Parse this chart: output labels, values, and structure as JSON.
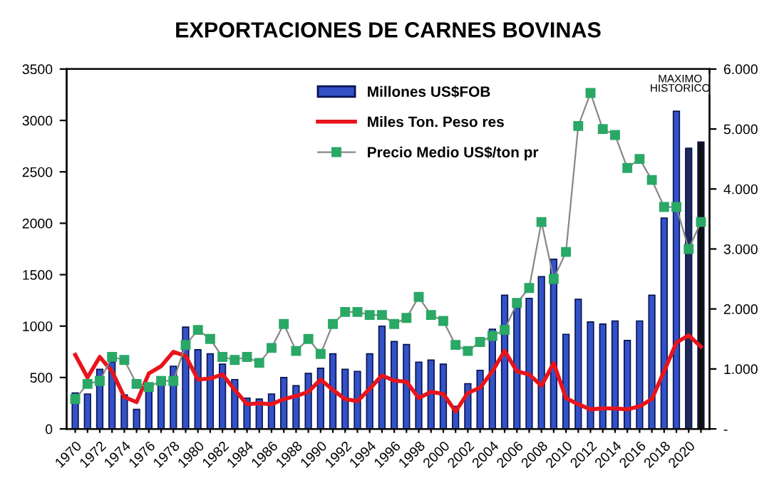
{
  "chart_data": {
    "type": "bar",
    "title": "EXPORTACIONES DE CARNES BOVINAS",
    "categories": [
      "1970",
      null,
      "1972",
      null,
      "1974",
      null,
      "1976",
      null,
      "1978",
      null,
      "1980",
      null,
      "1982",
      null,
      "1984",
      null,
      "1986",
      null,
      "1988",
      null,
      "1990",
      null,
      "1992",
      null,
      "1994",
      null,
      "1996",
      null,
      "1998",
      null,
      "2000",
      null,
      "2002",
      null,
      "2004",
      null,
      "2006",
      null,
      "2008",
      null,
      "2010",
      null,
      "2012",
      null,
      "2014",
      null,
      "2016",
      null,
      "2018",
      null,
      "2020",
      null
    ],
    "series": [
      {
        "name": "Millones US$FOB",
        "color": "#3352c8",
        "colors": [
          "#3352c8",
          "#3352c8",
          "#3352c8",
          "#3352c8",
          "#3352c8",
          "#3352c8",
          "#3352c8",
          "#3352c8",
          "#3352c8",
          "#3352c8",
          "#3352c8",
          "#3352c8",
          "#3352c8",
          "#3352c8",
          "#3352c8",
          "#3352c8",
          "#3352c8",
          "#3352c8",
          "#3352c8",
          "#3352c8",
          "#3352c8",
          "#3352c8",
          "#3352c8",
          "#3352c8",
          "#3352c8",
          "#3352c8",
          "#3352c8",
          "#3352c8",
          "#3352c8",
          "#3352c8",
          "#3352c8",
          "#3352c8",
          "#3352c8",
          "#3352c8",
          "#3352c8",
          "#3352c8",
          "#3352c8",
          "#3352c8",
          "#3352c8",
          "#3352c8",
          "#3352c8",
          "#3352c8",
          "#3352c8",
          "#3352c8",
          "#3352c8",
          "#3352c8",
          "#3352c8",
          "#3352c8",
          "#3352c8",
          "#3352c8",
          "#1f2a5c",
          "#111111"
        ],
        "values": [
          350,
          340,
          580,
          650,
          330,
          190,
          380,
          450,
          610,
          990,
          770,
          730,
          630,
          480,
          300,
          290,
          340,
          500,
          420,
          540,
          590,
          730,
          580,
          560,
          730,
          1000,
          850,
          820,
          650,
          670,
          630,
          220,
          440,
          570,
          970,
          1300,
          1180,
          1270,
          1480,
          1650,
          920,
          1260,
          1040,
          1020,
          1050,
          860,
          1050,
          1300,
          2050,
          3090,
          2730,
          2790
        ]
      },
      {
        "name": "Miles Ton. Peso res",
        "type": "line",
        "color": "#e8141c",
        "marker": "none",
        "values": [
          720,
          500,
          700,
          560,
          310,
          260,
          540,
          610,
          750,
          710,
          480,
          490,
          530,
          380,
          240,
          250,
          240,
          290,
          320,
          360,
          480,
          380,
          290,
          270,
          390,
          520,
          470,
          460,
          300,
          360,
          340,
          170,
          350,
          400,
          560,
          760,
          560,
          530,
          420,
          640,
          300,
          240,
          190,
          200,
          200,
          190,
          220,
          290,
          560,
          840,
          910,
          800
        ]
      },
      {
        "name": "Precio Medio US$/ton pr",
        "type": "line",
        "axis": "y2",
        "color": "#2aa866",
        "marker": "square",
        "values": [
          500,
          750,
          800,
          1200,
          1150,
          750,
          700,
          800,
          800,
          1400,
          1650,
          1500,
          1200,
          1150,
          1200,
          1100,
          1350,
          1750,
          1300,
          1500,
          1250,
          1750,
          1950,
          1950,
          1900,
          1900,
          1750,
          1850,
          2200,
          1900,
          1800,
          1400,
          1300,
          1450,
          1550,
          1650,
          2100,
          2350,
          3450,
          2500,
          2950,
          5050,
          5600,
          5000,
          4900,
          4350,
          4500,
          4150,
          3700,
          3700,
          3000,
          3450
        ]
      }
    ],
    "ylim": [
      0,
      3500
    ],
    "yticks": [
      0,
      500,
      1000,
      1500,
      2000,
      2500,
      3000,
      3500
    ],
    "y2lim": [
      0,
      6000
    ],
    "y2ticks": [
      {
        "value": 0,
        "label": "-"
      },
      {
        "value": 1000,
        "label": "1.000"
      },
      {
        "value": 2000,
        "label": "2.000"
      },
      {
        "value": 3000,
        "label": "3.000"
      },
      {
        "value": 4000,
        "label": "4.000"
      },
      {
        "value": 5000,
        "label": "5.000"
      },
      {
        "value": 6000,
        "label": "6.000"
      }
    ],
    "annotations": [
      "MAXIMO\nHISTORICO"
    ],
    "legend": "top",
    "grid": false
  }
}
